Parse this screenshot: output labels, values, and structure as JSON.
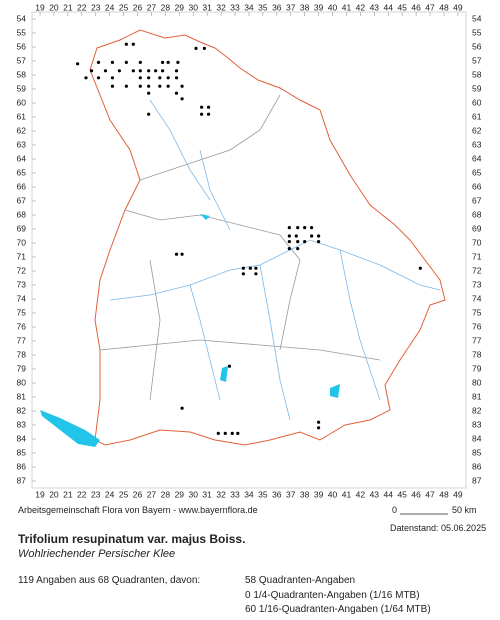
{
  "map": {
    "cols": [
      19,
      20,
      21,
      22,
      23,
      24,
      25,
      26,
      27,
      28,
      29,
      30,
      31,
      32,
      33,
      34,
      35,
      36,
      37,
      38,
      39,
      40,
      41,
      42,
      43,
      44,
      45,
      46,
      47,
      48,
      49
    ],
    "rows": [
      54,
      55,
      56,
      57,
      58,
      59,
      60,
      61,
      62,
      63,
      64,
      65,
      66,
      67,
      68,
      69,
      70,
      71,
      72,
      73,
      74,
      75,
      76,
      77,
      78,
      79,
      80,
      81,
      82,
      83,
      84,
      85,
      86,
      87
    ],
    "points": [
      [
        25.2,
        55.8
      ],
      [
        25.7,
        55.8
      ],
      [
        30.2,
        56.1
      ],
      [
        30.8,
        56.1
      ],
      [
        21.7,
        57.2
      ],
      [
        23.2,
        57.1
      ],
      [
        24.2,
        57.1
      ],
      [
        25.2,
        57.1
      ],
      [
        26.2,
        57.1
      ],
      [
        27.8,
        57.1
      ],
      [
        28.2,
        57.1
      ],
      [
        28.9,
        57.1
      ],
      [
        22.7,
        57.7
      ],
      [
        23.7,
        57.7
      ],
      [
        24.7,
        57.7
      ],
      [
        25.7,
        57.7
      ],
      [
        26.2,
        57.7
      ],
      [
        26.8,
        57.7
      ],
      [
        27.3,
        57.7
      ],
      [
        27.8,
        57.7
      ],
      [
        28.8,
        57.7
      ],
      [
        22.3,
        58.2
      ],
      [
        23.2,
        58.2
      ],
      [
        24.2,
        58.2
      ],
      [
        26.2,
        58.2
      ],
      [
        26.8,
        58.2
      ],
      [
        27.6,
        58.2
      ],
      [
        28.2,
        58.2
      ],
      [
        28.8,
        58.2
      ],
      [
        24.2,
        58.8
      ],
      [
        25.2,
        58.8
      ],
      [
        26.2,
        58.8
      ],
      [
        26.8,
        58.8
      ],
      [
        27.6,
        58.8
      ],
      [
        28.2,
        58.8
      ],
      [
        29.2,
        58.8
      ],
      [
        26.8,
        59.3
      ],
      [
        28.8,
        59.3
      ],
      [
        29.2,
        59.7
      ],
      [
        30.6,
        60.3
      ],
      [
        26.8,
        60.8
      ],
      [
        30.6,
        60.8
      ],
      [
        31.1,
        60.8
      ],
      [
        31.1,
        60.3
      ],
      [
        36.9,
        68.9
      ],
      [
        37.5,
        68.9
      ],
      [
        38.0,
        68.9
      ],
      [
        38.5,
        68.9
      ],
      [
        36.9,
        69.5
      ],
      [
        37.4,
        69.5
      ],
      [
        38.5,
        69.5
      ],
      [
        39.0,
        69.5
      ],
      [
        36.9,
        69.9
      ],
      [
        37.5,
        69.9
      ],
      [
        38.0,
        69.9
      ],
      [
        39.0,
        69.9
      ],
      [
        36.9,
        70.4
      ],
      [
        37.5,
        70.4
      ],
      [
        28.8,
        70.8
      ],
      [
        29.2,
        70.8
      ],
      [
        33.6,
        71.8
      ],
      [
        34.1,
        71.8
      ],
      [
        34.5,
        71.8
      ],
      [
        33.6,
        72.2
      ],
      [
        34.5,
        72.2
      ],
      [
        46.3,
        71.8
      ],
      [
        32.6,
        78.8
      ],
      [
        29.2,
        81.8
      ],
      [
        39.0,
        82.8
      ],
      [
        39.0,
        83.2
      ],
      [
        31.8,
        83.6
      ],
      [
        32.3,
        83.6
      ],
      [
        32.8,
        83.6
      ],
      [
        33.2,
        83.6
      ]
    ]
  },
  "footer": {
    "credit": "Arbeitsgemeinschaft Flora von Bayern - www.bayernflora.de",
    "scale_start": "0",
    "scale_end": "50 km",
    "date": "Datenstand: 05.06.2025",
    "title": "Trifolium resupinatum var. majus Boiss.",
    "subtitle": "Wohlriechender Persischer Klee",
    "summary": "119 Angaben aus 68 Quadranten, davon:",
    "stats": [
      "58 Quadranten-Angaben",
      "0 1/4-Quadranten-Angaben (1/16 MTB)",
      "60 1/16-Quadranten-Angaben (1/64 MTB)"
    ]
  }
}
